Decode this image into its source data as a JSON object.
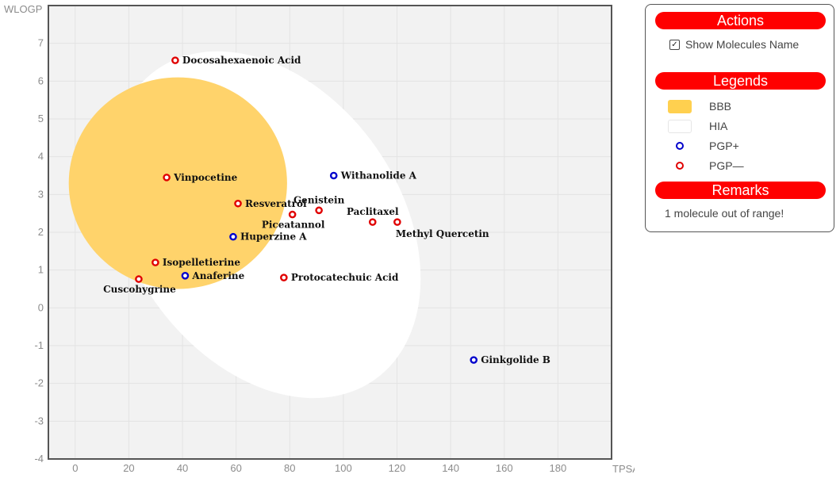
{
  "chart_data": {
    "type": "scatter",
    "xlabel": "TPSA",
    "ylabel": "WLOGP",
    "xlim": [
      -10,
      200
    ],
    "ylim": [
      -4,
      8
    ],
    "xticks": [
      0,
      20,
      40,
      60,
      80,
      100,
      120,
      140,
      160,
      180
    ],
    "yticks": [
      -4,
      -3,
      -2,
      -1,
      0,
      1,
      2,
      3,
      4,
      5,
      6,
      7
    ],
    "grid": true,
    "regions": [
      {
        "name": "BBB",
        "shape": "ellipse",
        "cx": 38.3,
        "cy": 3.3,
        "rx": 40.7,
        "ry": 2.8,
        "rotation": 0,
        "color": "#ffd36b"
      },
      {
        "name": "HIA",
        "shape": "ellipse",
        "cx": 71,
        "cy": 2.2,
        "rx": 72,
        "ry": 4.0,
        "rotation": 35,
        "color": "#ffffff"
      }
    ],
    "points": [
      {
        "name": "Docosahexaenoic Acid",
        "x": 37.3,
        "y": 6.55,
        "class": "PGP-",
        "label_pos": "right"
      },
      {
        "name": "Vinpocetine",
        "x": 34.1,
        "y": 3.45,
        "class": "PGP-",
        "label_pos": "right"
      },
      {
        "name": "Withanolide A",
        "x": 96.4,
        "y": 3.5,
        "class": "PGP+",
        "label_pos": "right"
      },
      {
        "name": "Resveratrol",
        "x": 60.7,
        "y": 2.76,
        "class": "PGP-",
        "label_pos": "right"
      },
      {
        "name": "Genistein",
        "x": 90.9,
        "y": 2.58,
        "class": "PGP-",
        "label_pos": "above"
      },
      {
        "name": "Piceatannol",
        "x": 81.0,
        "y": 2.47,
        "class": "PGP-",
        "label_pos": "below"
      },
      {
        "name": "Paclitaxel",
        "x": 110.9,
        "y": 2.27,
        "class": "PGP-",
        "label_pos": "above"
      },
      {
        "name": "Methyl Quercetin",
        "x": 120.1,
        "y": 2.27,
        "class": "PGP-",
        "label_pos": "below-right"
      },
      {
        "name": "Huperzine A",
        "x": 58.9,
        "y": 1.88,
        "class": "PGP+",
        "label_pos": "right"
      },
      {
        "name": "Isopelletierine",
        "x": 29.9,
        "y": 1.2,
        "class": "PGP-",
        "label_pos": "right"
      },
      {
        "name": "Anaferine",
        "x": 41.0,
        "y": 0.85,
        "class": "PGP+",
        "label_pos": "right"
      },
      {
        "name": "Cuscohygrine",
        "x": 23.7,
        "y": 0.76,
        "class": "PGP-",
        "label_pos": "below"
      },
      {
        "name": "Protocatechuic Acid",
        "x": 77.8,
        "y": 0.8,
        "class": "PGP-",
        "label_pos": "right"
      },
      {
        "name": "Ginkgolide B",
        "x": 148.6,
        "y": -1.38,
        "class": "PGP+",
        "label_pos": "right"
      }
    ],
    "colors": {
      "PGP+": "#0000cc",
      "PGP-": "#e00000",
      "plot_bg": "#f2f2f2",
      "grid": "#e3e3e3"
    }
  },
  "panel": {
    "actions_title": "Actions",
    "show_names_label": "Show Molecules Name",
    "show_names_checked": true,
    "legends_title": "Legends",
    "legend_items": [
      {
        "label": "BBB",
        "kind": "swatch",
        "color": "#ffd04f"
      },
      {
        "label": "HIA",
        "kind": "swatch",
        "color": "#ffffff"
      },
      {
        "label": "PGP+",
        "kind": "ring",
        "color": "#0000cc"
      },
      {
        "label": "PGP—",
        "kind": "ring",
        "color": "#e00000"
      }
    ],
    "remarks_title": "Remarks",
    "remark_text": "1 molecule out of range!",
    "accent_color": "#ff0000"
  }
}
